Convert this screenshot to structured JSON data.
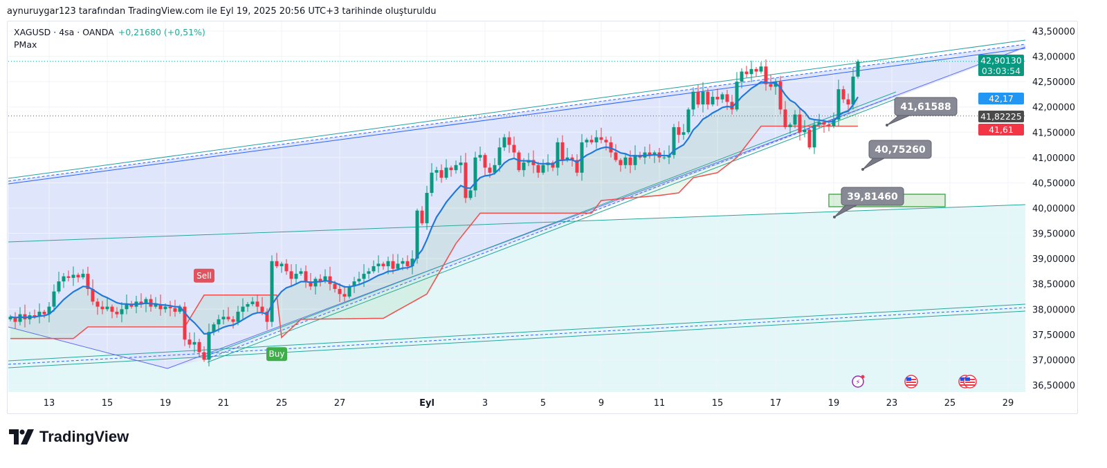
{
  "caption": "aynuruygar123 tarafından TradingView.com ile Eyl 19, 2025 20:56 UTC+3 tarihinde oluşturuldu",
  "legend": {
    "symbol": "XAGUSD · 4sa · OANDA",
    "change": "+0,21680 (+0,51%)",
    "indicator": "PMax"
  },
  "colors": {
    "up": "#089981",
    "down": "#f23645",
    "ema": "#2962ff",
    "pmax": "#f05350",
    "accent_green": "#089981",
    "accent_blue": "#2196f3"
  },
  "price_axis": {
    "ticks": [
      "43,50000",
      "43,00000",
      "42,50000",
      "42,00000",
      "41,50000",
      "41,00000",
      "40,50000",
      "40,00000",
      "39,50000",
      "39,00000",
      "38,50000",
      "38,00000",
      "37,50000",
      "37,00000",
      "36,50000"
    ],
    "tick_values": [
      43.5,
      43,
      42.5,
      42,
      41.5,
      41,
      40.5,
      40,
      39.5,
      39,
      38.5,
      38,
      37.5,
      37,
      36.5
    ],
    "labels": {
      "last_price": "42,90130",
      "countdown": "03:03:54",
      "ema_value": "42,17",
      "crosshair_line": "41,82225",
      "pmax_value": "41,61"
    }
  },
  "time_axis": [
    {
      "label": "13",
      "bar": 8
    },
    {
      "label": "15",
      "bar": 20
    },
    {
      "label": "19",
      "bar": 32
    },
    {
      "label": "21",
      "bar": 44
    },
    {
      "label": "25",
      "bar": 56
    },
    {
      "label": "27",
      "bar": 68
    },
    {
      "label": "Eyl",
      "bar": 86,
      "bold": true
    },
    {
      "label": "3",
      "bar": 98
    },
    {
      "label": "5",
      "bar": 110
    },
    {
      "label": "9",
      "bar": 122
    },
    {
      "label": "11",
      "bar": 134
    },
    {
      "label": "15",
      "bar": 146
    },
    {
      "label": "17",
      "bar": 158
    },
    {
      "label": "19",
      "bar": 170
    },
    {
      "label": "23",
      "bar": 182
    },
    {
      "label": "25",
      "bar": 194
    },
    {
      "label": "29",
      "bar": 206
    }
  ],
  "chart_data": {
    "type": "candlestick",
    "symbol": "XAGUSD",
    "interval": "4sa",
    "ylim": [
      36.35,
      43.7
    ],
    "closes": [
      37.85,
      37.75,
      37.9,
      37.8,
      37.88,
      37.85,
      37.95,
      37.9,
      38.05,
      38.35,
      38.55,
      38.65,
      38.62,
      38.68,
      38.63,
      38.7,
      38.4,
      38.15,
      38.05,
      38.0,
      38.05,
      37.95,
      37.9,
      38.0,
      38.1,
      38.05,
      38.15,
      38.1,
      38.2,
      38.05,
      38.1,
      38.0,
      38.05,
      38.02,
      37.95,
      38.05,
      37.4,
      37.3,
      37.35,
      37.15,
      37.0,
      37.55,
      37.7,
      37.8,
      37.85,
      37.8,
      37.75,
      37.95,
      38.05,
      38.1,
      38.15,
      38.05,
      37.95,
      37.75,
      38.95,
      38.85,
      38.9,
      38.75,
      38.6,
      38.7,
      38.75,
      38.55,
      38.45,
      38.6,
      38.55,
      38.65,
      38.5,
      38.4,
      38.3,
      38.25,
      38.45,
      38.55,
      38.6,
      38.7,
      38.75,
      38.85,
      38.9,
      38.85,
      38.95,
      38.8,
      38.9,
      38.95,
      38.85,
      39.0,
      39.95,
      39.7,
      40.3,
      40.7,
      40.75,
      40.6,
      40.8,
      40.75,
      40.85,
      40.9,
      40.2,
      40.35,
      41.0,
      41.05,
      40.8,
      40.7,
      40.85,
      41.2,
      41.4,
      41.25,
      41.1,
      40.75,
      40.9,
      40.95,
      40.85,
      40.7,
      40.85,
      40.9,
      40.8,
      41.3,
      40.95,
      41.0,
      40.95,
      40.7,
      41.3,
      41.35,
      41.3,
      41.4,
      41.35,
      41.3,
      41.1,
      40.95,
      40.85,
      41.0,
      40.85,
      41.05,
      41.0,
      41.1,
      41.05,
      41.1,
      41.0,
      41.0,
      41.05,
      41.6,
      41.45,
      41.5,
      41.95,
      42.3,
      42.05,
      42.3,
      42.05,
      42.2,
      42.15,
      42.25,
      42.1,
      41.95,
      42.5,
      42.7,
      42.65,
      42.75,
      42.7,
      42.8,
      42.45,
      42.4,
      42.5,
      41.95,
      41.6,
      41.65,
      41.85,
      41.5,
      41.55,
      41.2,
      41.65,
      41.7,
      41.65,
      41.62,
      41.75,
      42.35,
      42.15,
      42.05,
      42.6,
      42.9
    ],
    "first_open": 37.8,
    "ema_period": 10,
    "pmax": [
      [
        0,
        37.42
      ],
      [
        13,
        37.42
      ],
      [
        16,
        37.65
      ],
      [
        36,
        37.65
      ],
      [
        40,
        38.28
      ],
      [
        55,
        38.28
      ],
      [
        56,
        37.44
      ],
      [
        60,
        37.8
      ],
      [
        77,
        37.82
      ],
      [
        86,
        38.3
      ],
      [
        92,
        39.3
      ],
      [
        97,
        39.9
      ],
      [
        120,
        39.9
      ],
      [
        122,
        40.15
      ],
      [
        134,
        40.25
      ],
      [
        138,
        40.3
      ],
      [
        141,
        40.6
      ],
      [
        146,
        40.7
      ],
      [
        150,
        41.0
      ],
      [
        155,
        41.62
      ],
      [
        175,
        41.62
      ]
    ],
    "signals": [
      {
        "label": "Sell",
        "bar": 40,
        "price": 38.28,
        "type": "sell"
      },
      {
        "label": "Buy",
        "bar": 55,
        "price": 37.44,
        "type": "buy"
      }
    ],
    "price_callouts": [
      "41,61588",
      "40,75260",
      "39,81460"
    ],
    "last_price": 42.9013,
    "crosshair_price": 41.82225
  },
  "events": [
    {
      "icon": "lightning-event-icon"
    },
    {
      "icon": "us-flag-event-icon"
    },
    {
      "icon": "us-flag-double-event-icon"
    }
  ],
  "brand": {
    "name": "TradingView"
  }
}
